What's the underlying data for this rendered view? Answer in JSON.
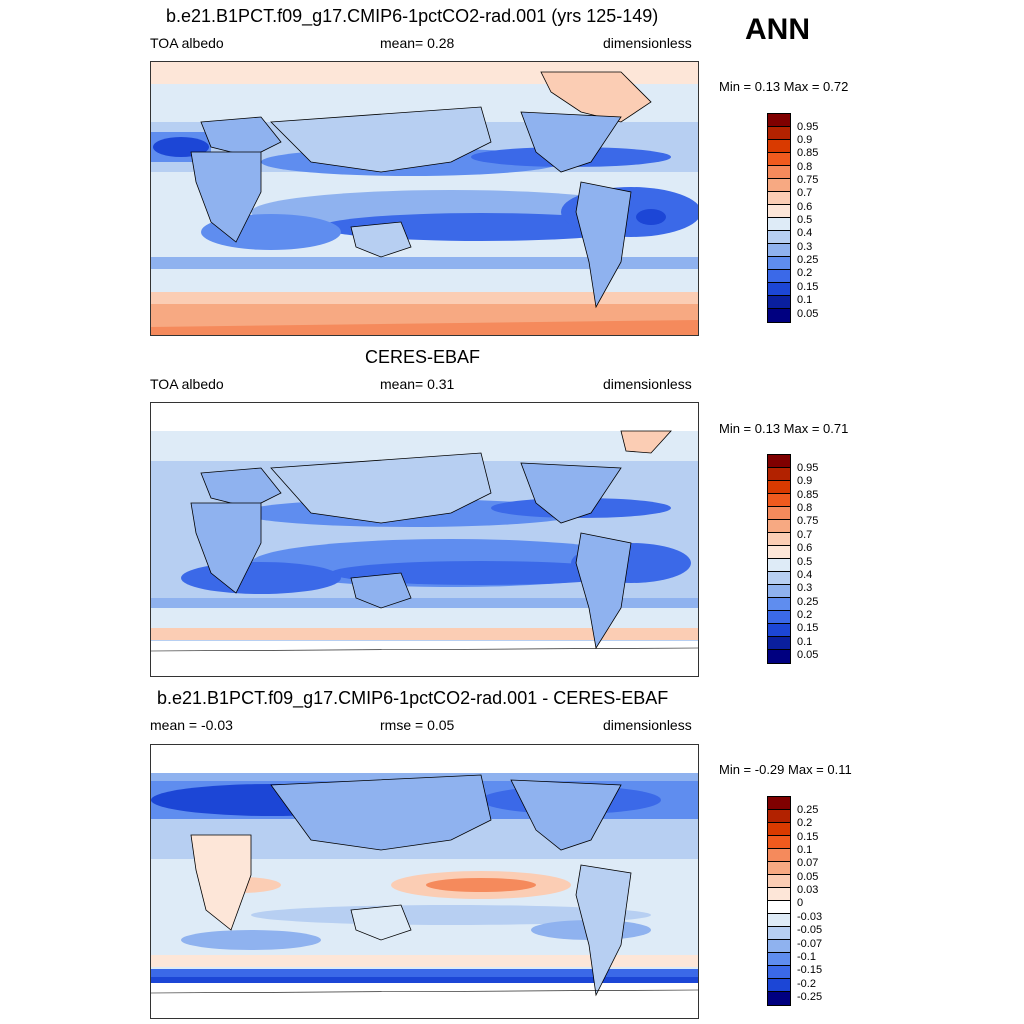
{
  "season": "ANN",
  "panels": [
    {
      "title": "b.e21.B1PCT.f09_g17.CMIP6-1pctCO2-rad.001 (yrs 125-149)",
      "left_label": "TOA albedo",
      "center_label": "mean=   0.28",
      "right_label": "dimensionless",
      "minmax": "Min =   0.13 Max =   0.72",
      "colorbar_labels": [
        "0.95",
        "0.9",
        "0.85",
        "0.8",
        "0.75",
        "0.7",
        "0.6",
        "0.5",
        "0.4",
        "0.3",
        "0.25",
        "0.2",
        "0.15",
        "0.1",
        "0.05"
      ]
    },
    {
      "title": "CERES-EBAF",
      "left_label": "TOA albedo",
      "center_label": "mean=   0.31",
      "right_label": "dimensionless",
      "minmax": "Min =   0.13 Max =   0.71",
      "colorbar_labels": [
        "0.95",
        "0.9",
        "0.85",
        "0.8",
        "0.75",
        "0.7",
        "0.6",
        "0.5",
        "0.4",
        "0.3",
        "0.25",
        "0.2",
        "0.15",
        "0.1",
        "0.05"
      ]
    },
    {
      "title": "b.e21.B1PCT.f09_g17.CMIP6-1pctCO2-rad.001 - CERES-EBAF",
      "left_label": "mean =  -0.03",
      "center_label": "rmse =   0.05",
      "right_label": "dimensionless",
      "minmax": "Min =  -0.29 Max =   0.11",
      "colorbar_labels": [
        "0.25",
        "0.2",
        "0.15",
        "0.1",
        "0.07",
        "0.05",
        "0.03",
        "0",
        "-0.03",
        "-0.05",
        "-0.07",
        "-0.1",
        "-0.15",
        "-0.2",
        "-0.25"
      ]
    }
  ],
  "colors": {
    "abs_scale": [
      "#7f0000",
      "#b22200",
      "#d93a00",
      "#f05a1e",
      "#f58a5c",
      "#f7a982",
      "#fbcdb4",
      "#fde6d8",
      "#deebf7",
      "#b7cff2",
      "#8fb2ef",
      "#5f8def",
      "#3b69e8",
      "#1c46d6",
      "#0a1f9e",
      "#000080"
    ],
    "diff_scale": [
      "#7f0000",
      "#b22200",
      "#d93a00",
      "#f05a1e",
      "#f58a5c",
      "#f7a982",
      "#fbcdb4",
      "#fde6d8",
      "#ffffff",
      "#deebf7",
      "#b7cff2",
      "#8fb2ef",
      "#5f8def",
      "#3b69e8",
      "#1c46d6",
      "#000080"
    ]
  }
}
